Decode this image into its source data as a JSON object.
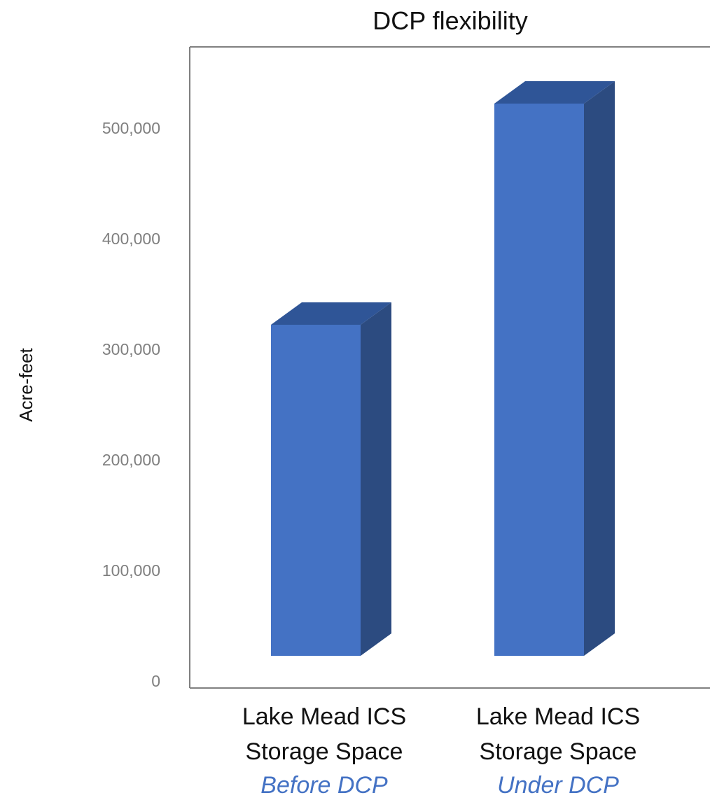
{
  "chart_data": {
    "type": "bar",
    "title": "DCP flexibility",
    "ylabel": "Acre-feet",
    "xlabel": "",
    "categories": [
      {
        "line1": "Lake Mead ICS",
        "line2": "Storage Space",
        "line3": "Before DCP"
      },
      {
        "line1": "Lake Mead ICS",
        "line2": "Storage Space",
        "line3": "Under DCP"
      }
    ],
    "values": [
      300000,
      500000
    ],
    "ylim": [
      0,
      500000
    ],
    "yticks": [
      0,
      100000,
      200000,
      300000,
      400000,
      500000
    ],
    "ytick_labels": [
      "0",
      "100,000",
      "200,000",
      "300,000",
      "400,000",
      "500,000"
    ],
    "bar_style": "3d-column",
    "grid": false,
    "colors": {
      "bar_front": "#4472c4",
      "bar_side": "#2c4b80",
      "bar_top": "#2f5597",
      "tick_text": "#7f7f7f",
      "category_subtitle": "#4472c4",
      "frame": "#808080"
    }
  }
}
